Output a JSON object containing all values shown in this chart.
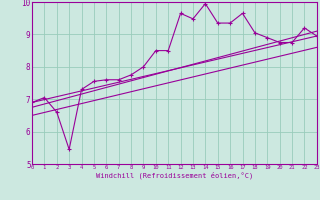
{
  "bg_color": "#cce8e0",
  "line_color": "#990099",
  "grid_color": "#99ccbb",
  "xlabel": "Windchill (Refroidissement éolien,°C)",
  "xlim": [
    0,
    23
  ],
  "ylim": [
    5,
    10
  ],
  "xticks": [
    0,
    1,
    2,
    3,
    4,
    5,
    6,
    7,
    8,
    9,
    10,
    11,
    12,
    13,
    14,
    15,
    16,
    17,
    18,
    19,
    20,
    21,
    22,
    23
  ],
  "yticks": [
    5,
    6,
    7,
    8,
    9,
    10
  ],
  "main_x": [
    0,
    1,
    2,
    3,
    4,
    5,
    6,
    7,
    8,
    9,
    10,
    11,
    12,
    13,
    14,
    15,
    16,
    17,
    18,
    19,
    20,
    21,
    22,
    23
  ],
  "main_y": [
    6.9,
    7.05,
    6.6,
    5.45,
    7.3,
    7.55,
    7.6,
    7.6,
    7.75,
    8.0,
    8.5,
    8.5,
    9.65,
    9.48,
    9.95,
    9.35,
    9.35,
    9.65,
    9.05,
    8.9,
    8.75,
    8.75,
    9.2,
    8.95
  ],
  "line1_x": [
    0,
    23
  ],
  "line1_y": [
    6.9,
    8.95
  ],
  "line2_x": [
    0,
    23
  ],
  "line2_y": [
    6.75,
    9.1
  ],
  "line3_x": [
    0,
    23
  ],
  "line3_y": [
    6.5,
    8.6
  ]
}
